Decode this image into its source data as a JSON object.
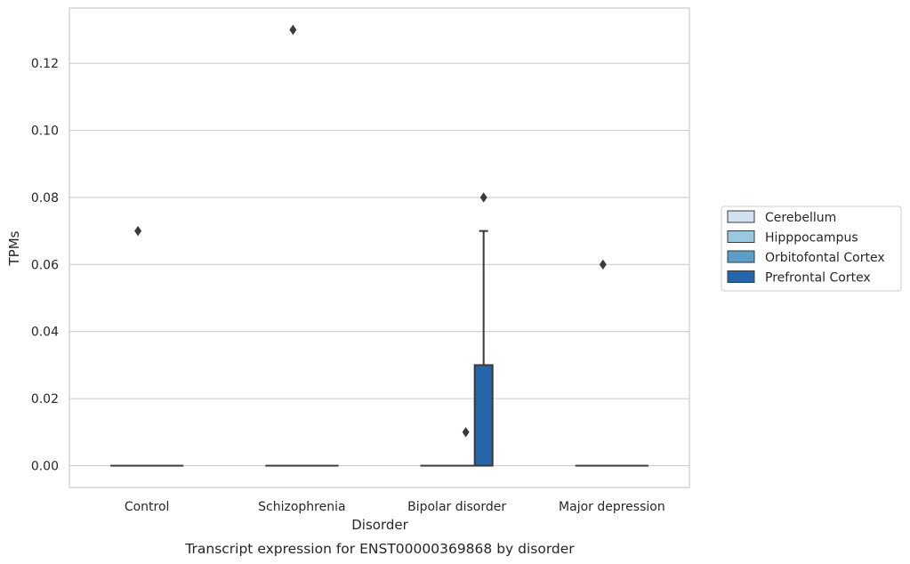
{
  "chart_data": {
    "type": "box",
    "title": "",
    "caption": "Transcript expression for ENST00000369868 by disorder",
    "xlabel": "Disorder",
    "ylabel": "TPMs",
    "categories": [
      "Control",
      "Schizophrenia",
      "Bipolar disorder",
      "Major depression"
    ],
    "ylim": [
      -0.0065,
      0.1365
    ],
    "yticks": [
      0.0,
      0.02,
      0.04,
      0.06,
      0.08,
      0.1,
      0.12
    ],
    "ytick_labels": [
      "0.00",
      "0.02",
      "0.04",
      "0.06",
      "0.08",
      "0.10",
      "0.12"
    ],
    "grid": true,
    "legend_position": "right",
    "series": [
      {
        "name": "Cerebellum",
        "color": "#d0e1f2",
        "boxes": [
          {
            "category": "Control",
            "q1": 0,
            "median": 0,
            "q3": 0,
            "whisker_low": 0,
            "whisker_high": 0,
            "outliers": []
          },
          {
            "category": "Schizophrenia",
            "q1": 0,
            "median": 0,
            "q3": 0,
            "whisker_low": 0,
            "whisker_high": 0,
            "outliers": []
          },
          {
            "category": "Bipolar disorder",
            "q1": 0,
            "median": 0,
            "q3": 0,
            "whisker_low": 0,
            "whisker_high": 0,
            "outliers": []
          },
          {
            "category": "Major depression",
            "q1": 0,
            "median": 0,
            "q3": 0,
            "whisker_low": 0,
            "whisker_high": 0,
            "outliers": []
          }
        ]
      },
      {
        "name": "Hipppocampus",
        "color": "#9ac8e0",
        "boxes": [
          {
            "category": "Control",
            "q1": 0,
            "median": 0,
            "q3": 0,
            "whisker_low": 0,
            "whisker_high": 0,
            "outliers": [
              0.07
            ]
          },
          {
            "category": "Schizophrenia",
            "q1": 0,
            "median": 0,
            "q3": 0,
            "whisker_low": 0,
            "whisker_high": 0,
            "outliers": [
              0.13
            ]
          },
          {
            "category": "Bipolar disorder",
            "q1": 0,
            "median": 0,
            "q3": 0,
            "whisker_low": 0,
            "whisker_high": 0,
            "outliers": []
          },
          {
            "category": "Major depression",
            "q1": 0,
            "median": 0,
            "q3": 0,
            "whisker_low": 0,
            "whisker_high": 0,
            "outliers": [
              0.06
            ]
          }
        ]
      },
      {
        "name": "Orbitofontal Cortex",
        "color": "#5b9ec9",
        "boxes": [
          {
            "category": "Control",
            "q1": 0,
            "median": 0,
            "q3": 0,
            "whisker_low": 0,
            "whisker_high": 0,
            "outliers": []
          },
          {
            "category": "Schizophrenia",
            "q1": 0,
            "median": 0,
            "q3": 0,
            "whisker_low": 0,
            "whisker_high": 0,
            "outliers": []
          },
          {
            "category": "Bipolar disorder",
            "q1": 0,
            "median": 0,
            "q3": 0,
            "whisker_low": 0,
            "whisker_high": 0,
            "outliers": [
              0.01
            ]
          },
          {
            "category": "Major depression",
            "q1": 0,
            "median": 0,
            "q3": 0,
            "whisker_low": 0,
            "whisker_high": 0,
            "outliers": []
          }
        ]
      },
      {
        "name": "Prefrontal Cortex",
        "color": "#2565a8",
        "boxes": [
          {
            "category": "Control",
            "q1": 0,
            "median": 0,
            "q3": 0,
            "whisker_low": 0,
            "whisker_high": 0,
            "outliers": []
          },
          {
            "category": "Schizophrenia",
            "q1": 0,
            "median": 0,
            "q3": 0,
            "whisker_low": 0,
            "whisker_high": 0,
            "outliers": []
          },
          {
            "category": "Bipolar disorder",
            "q1": 0,
            "median": 0,
            "q3": 0.03,
            "whisker_low": 0,
            "whisker_high": 0.07,
            "outliers": [
              0.08
            ]
          },
          {
            "category": "Major depression",
            "q1": 0,
            "median": 0,
            "q3": 0,
            "whisker_low": 0,
            "whisker_high": 0,
            "outliers": []
          }
        ]
      }
    ]
  }
}
